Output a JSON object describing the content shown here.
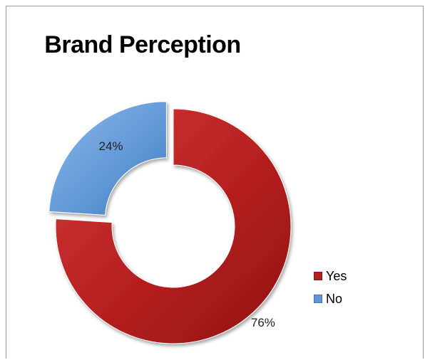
{
  "chart_data": {
    "type": "pie",
    "subtype": "doughnut",
    "title": "Brand Perception",
    "categories": [
      "Yes",
      "No"
    ],
    "values": [
      76,
      24
    ],
    "data_labels": [
      "76%",
      "24%"
    ],
    "colors": [
      "#b51f1f",
      "#5f97d6"
    ],
    "exploded": [
      "No"
    ],
    "legend": {
      "placement": "right",
      "entries": [
        "Yes",
        "No"
      ]
    }
  }
}
